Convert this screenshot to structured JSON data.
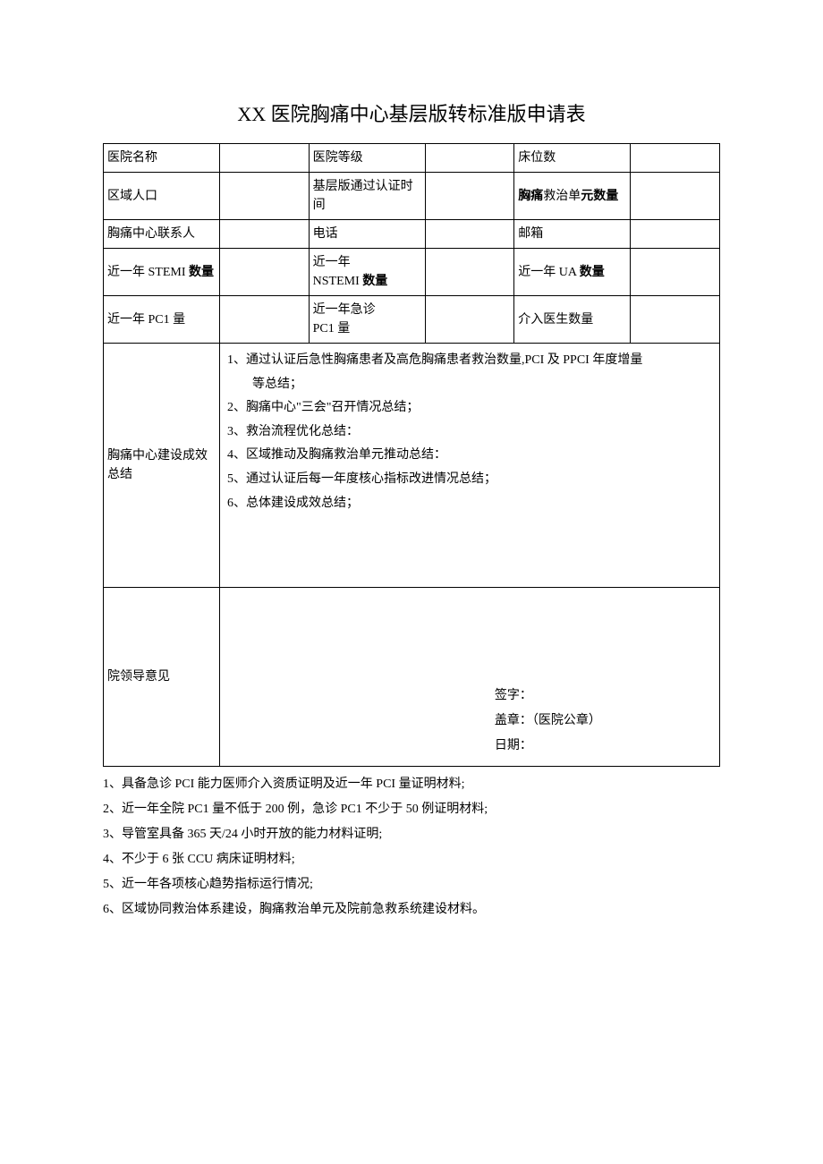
{
  "document": {
    "title": "XX 医院胸痛中心基层版转标准版申请表",
    "text_color": "#000000",
    "background_color": "#ffffff",
    "border_color": "#000000",
    "title_fontsize": 22,
    "body_fontsize": 14
  },
  "table": {
    "row1": {
      "label1": "医院名称",
      "value1": "",
      "label2": "医院等级",
      "value2": "",
      "label3": "床位数",
      "value3": ""
    },
    "row2": {
      "label1": "区域人口",
      "value1": "",
      "label2": "基层版通过认证时间",
      "value2": "",
      "label3_part1": "胸痛",
      "label3_part2": "救治单",
      "label3_part3": "元数量",
      "value3": ""
    },
    "row3": {
      "label1": "胸痛中心联系人",
      "value1": "",
      "label2": "电话",
      "value2": "",
      "label3": "邮箱",
      "value3": ""
    },
    "row4": {
      "label1_part1": "近一年 STEMI ",
      "label1_part2": "数量",
      "value1": "",
      "label2_part1": "近一年",
      "label2_part2": "NSTEMI ",
      "label2_part3": "数量",
      "value2": "",
      "label3_part1": "近一年 UA ",
      "label3_part2": "数量",
      "value3": ""
    },
    "row5": {
      "label1": "近一年 PC1 量",
      "value1": "",
      "label2_part1": "近一年急诊",
      "label2_part2": "PC1 量",
      "value2": "",
      "label3": "介入医生数量",
      "value3": ""
    },
    "summary": {
      "label": "胸痛中心建设成效总结",
      "item1": "1、通过认证后急性胸痛患者及高危胸痛患者救治数量,PCI 及 PPCI 年度增量",
      "item1_cont": "等总结；",
      "item2": "2、胸痛中心\"三会\"召开情况总结；",
      "item3": "3、救治流程优化总结：",
      "item4": "4、区域推动及胸痛救治单元推动总结：",
      "item5": "5、通过认证后每一年度核心指标改进情况总结；",
      "item6": "6、总体建设成效总结；"
    },
    "leader": {
      "label": "院领导意见",
      "sign": "签字：",
      "seal": "盖章：（医院公章）",
      "date": "日期："
    }
  },
  "notes": {
    "item1": "1、具备急诊 PCI 能力医师介入资质证明及近一年 PCI 量证明材料;",
    "item2": "2、近一年全院 PC1 量不低于 200 例，急诊 PC1 不少于 50 例证明材料;",
    "item3": "3、导管室具备 365 天/24 小时开放的能力材料证明;",
    "item4": "4、不少于 6 张 CCU 病床证明材料;",
    "item5": "5、近一年各项核心趋势指标运行情况;",
    "item6": "6、区域协同救治体系建设，胸痛救治单元及院前急救系统建设材料。"
  }
}
